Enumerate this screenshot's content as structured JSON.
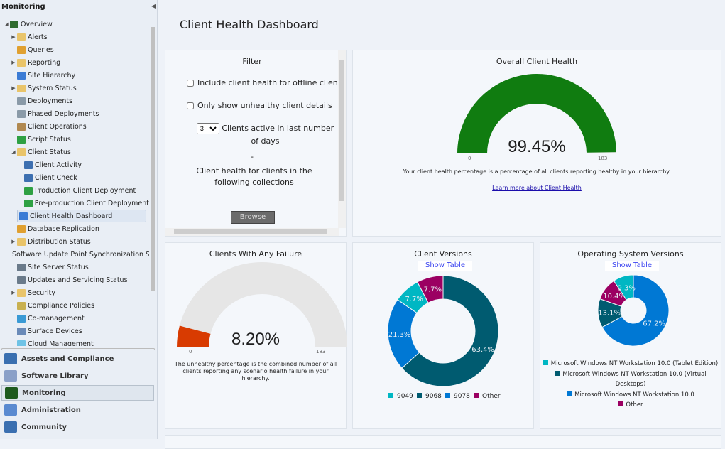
{
  "sidebar": {
    "title": "Monitoring",
    "collapse_icon": "chevron-left-icon",
    "tree": [
      {
        "label": "Overview",
        "level": 0,
        "expander": "expanded",
        "icon": "overview-icon",
        "color": "#2f6b2f"
      },
      {
        "label": "Alerts",
        "level": 1,
        "expander": "collapsed",
        "icon": "folder-icon",
        "color": "#e9c46a"
      },
      {
        "label": "Queries",
        "level": 1,
        "expander": "",
        "icon": "query-icon",
        "color": "#e0a030"
      },
      {
        "label": "Reporting",
        "level": 1,
        "expander": "collapsed",
        "icon": "folder-icon",
        "color": "#e9c46a"
      },
      {
        "label": "Site Hierarchy",
        "level": 1,
        "expander": "",
        "icon": "hierarchy-icon",
        "color": "#3a7bd5"
      },
      {
        "label": "System Status",
        "level": 1,
        "expander": "collapsed",
        "icon": "folder-icon",
        "color": "#e9c46a"
      },
      {
        "label": "Deployments",
        "level": 1,
        "expander": "",
        "icon": "deployment-icon",
        "color": "#8a9aa8"
      },
      {
        "label": "Phased Deployments",
        "level": 1,
        "expander": "",
        "icon": "deployment-icon",
        "color": "#8a9aa8"
      },
      {
        "label": "Client Operations",
        "level": 1,
        "expander": "",
        "icon": "clipboard-icon",
        "color": "#b08850"
      },
      {
        "label": "Script Status",
        "level": 1,
        "expander": "",
        "icon": "play-icon",
        "color": "#2ea043"
      },
      {
        "label": "Client Status",
        "level": 1,
        "expander": "expanded",
        "icon": "folder-icon",
        "color": "#e9c46a"
      },
      {
        "label": "Client Activity",
        "level": 2,
        "expander": "",
        "icon": "client-activity-icon",
        "color": "#3d6fb0"
      },
      {
        "label": "Client Check",
        "level": 2,
        "expander": "",
        "icon": "client-check-icon",
        "color": "#3d6fb0"
      },
      {
        "label": "Production Client Deployment",
        "level": 2,
        "expander": "",
        "icon": "client-deploy-icon",
        "color": "#2ea043"
      },
      {
        "label": "Pre-production Client Deployment",
        "level": 2,
        "expander": "",
        "icon": "client-deploy-icon",
        "color": "#2ea043"
      },
      {
        "label": "Client Health Dashboard",
        "level": 2,
        "expander": "",
        "icon": "dashboard-icon",
        "color": "#3a7bd5",
        "selected": true
      },
      {
        "label": "Database Replication",
        "level": 1,
        "expander": "",
        "icon": "database-icon",
        "color": "#e0a030"
      },
      {
        "label": "Distribution Status",
        "level": 1,
        "expander": "collapsed",
        "icon": "folder-icon",
        "color": "#e9c46a"
      },
      {
        "label": "Software Update Point Synchronization Sta",
        "level": 1,
        "expander": "",
        "icon": "sync-status-icon",
        "color": "#2e7fd0"
      },
      {
        "label": "Site Server Status",
        "level": 1,
        "expander": "",
        "icon": "server-status-icon",
        "color": "#6a7a8a"
      },
      {
        "label": "Updates and Servicing Status",
        "level": 1,
        "expander": "",
        "icon": "server-status-icon",
        "color": "#6a7a8a"
      },
      {
        "label": "Security",
        "level": 1,
        "expander": "collapsed",
        "icon": "folder-icon",
        "color": "#e9c46a"
      },
      {
        "label": "Compliance Policies",
        "level": 1,
        "expander": "",
        "icon": "compliance-icon",
        "color": "#c8b050"
      },
      {
        "label": "Co-management",
        "level": 1,
        "expander": "",
        "icon": "co-management-icon",
        "color": "#3a9ad5"
      },
      {
        "label": "Surface Devices",
        "level": 1,
        "expander": "",
        "icon": "surface-icon",
        "color": "#6a8ab8"
      },
      {
        "label": "Cloud Management",
        "level": 1,
        "expander": "",
        "icon": "cloud-icon",
        "color": "#6fc3e6"
      }
    ],
    "workspaces": [
      {
        "label": "Assets and Compliance",
        "icon": "assets-icon",
        "color": "#3a6fb0"
      },
      {
        "label": "Software Library",
        "icon": "software-library-icon",
        "color": "#8aa0c8"
      },
      {
        "label": "Monitoring",
        "icon": "monitoring-icon",
        "color": "#1e5a1e",
        "selected": true
      },
      {
        "label": "Administration",
        "icon": "administration-icon",
        "color": "#5a8ad0"
      },
      {
        "label": "Community",
        "icon": "community-icon",
        "color": "#3a6fb0"
      }
    ]
  },
  "page": {
    "title": "Client Health Dashboard"
  },
  "filter": {
    "title": "Filter",
    "offline_label": "Include client health for offline clients",
    "offline_checked": false,
    "unhealthy_label": "Only show unhealthy client details",
    "unhealthy_checked": false,
    "days_value": "3",
    "days_label": "Clients active in last number of days",
    "dash": "-",
    "collections_label": "Client health for clients in the following collections",
    "browse_label": "Browse"
  },
  "overall": {
    "title": "Overall Client Health",
    "value_text": "99.45%",
    "value": 99.45,
    "min": "0",
    "max": "183",
    "color": "#107c10",
    "description": "Your client health percentage is a percentage of all clients reporting healthy in your hierarchy.",
    "link": "Learn more about Client Health"
  },
  "failure": {
    "title": "Clients With Any Failure",
    "value_text": "8.20%",
    "value": 8.2,
    "min": "0",
    "max": "183",
    "color": "#d83b01",
    "description": "The unhealthy percentage is the combined number of all clients reporting any scenario health failure in your hierarchy."
  },
  "chart_data": [
    {
      "type": "pie",
      "title": "Client Versions",
      "show_table": "Show Table",
      "donut": true,
      "slices": [
        {
          "name": "9068",
          "value": 63.4,
          "label": "63.4%",
          "color": "#005b70"
        },
        {
          "name": "9078",
          "value": 21.3,
          "label": "21.3%",
          "color": "#0078d4"
        },
        {
          "name": "9049",
          "value": 7.7,
          "label": "7.7%",
          "color": "#00b7c3"
        },
        {
          "name": "Other",
          "value": 7.7,
          "label": "7.7%",
          "color": "#9b0062"
        }
      ],
      "legend": [
        "9049",
        "9068",
        "9078",
        "Other"
      ],
      "legend_placement": "bottom"
    },
    {
      "type": "pie",
      "title": "Operating System Versions",
      "show_table": "Show Table",
      "donut": true,
      "slices": [
        {
          "name": "Microsoft Windows NT Workstation 10.0",
          "value": 67.2,
          "label": "67.2%",
          "color": "#0078d4"
        },
        {
          "name": "Microsoft Windows NT Workstation 10.0 (Virtual Desktops)",
          "value": 13.1,
          "label": "13.1%",
          "color": "#005b70"
        },
        {
          "name": "Other",
          "value": 10.4,
          "label": "10.4%",
          "color": "#9b0062"
        },
        {
          "name": "Microsoft Windows NT Workstation 10.0 (Tablet Edition)",
          "value": 9.3,
          "label": "9.3%",
          "color": "#00b7c3"
        }
      ],
      "legend": [
        "Microsoft Windows NT Workstation 10.0 (Tablet Edition)",
        "Microsoft Windows NT Workstation 10.0 (Virtual Desktops)",
        "Microsoft Windows NT Workstation 10.0",
        "Other"
      ],
      "legend_placement": "bottom"
    }
  ]
}
